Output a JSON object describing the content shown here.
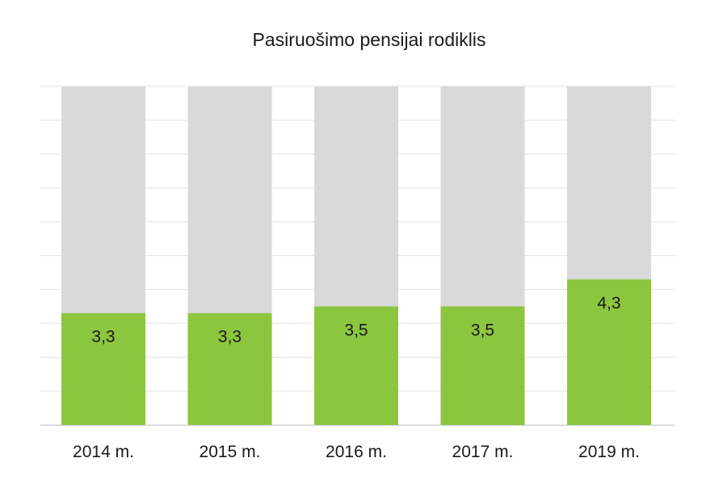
{
  "chart_data": {
    "type": "bar",
    "title": "Pasiruošimo pensijai rodiklis",
    "categories": [
      "2014 m.",
      "2015 m.",
      "2016 m.",
      "2017 m.",
      "2019 m."
    ],
    "values": [
      3.3,
      3.3,
      3.5,
      3.5,
      4.3
    ],
    "value_labels": [
      "3,3",
      "3,3",
      "3,5",
      "3,5",
      "4,3"
    ],
    "ylim": [
      0,
      10
    ],
    "background_max": 10,
    "grid": true,
    "legend": "none",
    "colors": {
      "bar": "#8cc63e",
      "background_bar": "#d9d9d9",
      "grid": "#e3e3e3",
      "axis": "#c8c8c8"
    }
  }
}
